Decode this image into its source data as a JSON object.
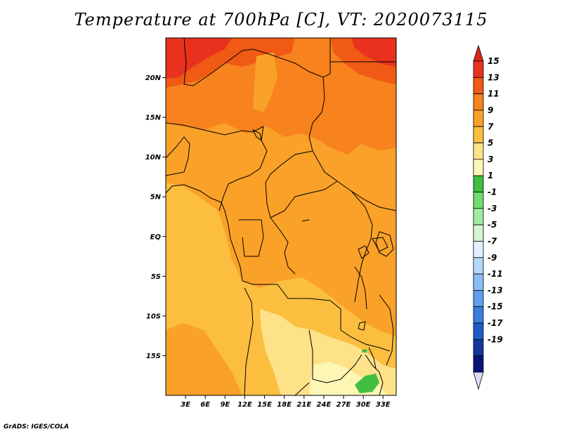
{
  "title": "Temperature at 700hPa [C], VT: 2020073115",
  "footer": "GrADS: IGES/COLA",
  "map": {
    "lon_range": [
      0,
      35
    ],
    "lat_range": [
      -20,
      25
    ],
    "lat_ticks": [
      {
        "value": 20,
        "label": "20N"
      },
      {
        "value": 15,
        "label": "15N"
      },
      {
        "value": 10,
        "label": "10N"
      },
      {
        "value": 5,
        "label": "5N"
      },
      {
        "value": 0,
        "label": "EQ"
      },
      {
        "value": -5,
        "label": "5S"
      },
      {
        "value": -10,
        "label": "10S"
      },
      {
        "value": -15,
        "label": "15S"
      }
    ],
    "lon_ticks": [
      {
        "value": 3,
        "label": "3E"
      },
      {
        "value": 6,
        "label": "6E"
      },
      {
        "value": 9,
        "label": "9E"
      },
      {
        "value": 12,
        "label": "12E"
      },
      {
        "value": 15,
        "label": "15E"
      },
      {
        "value": 18,
        "label": "18E"
      },
      {
        "value": 21,
        "label": "21E"
      },
      {
        "value": 24,
        "label": "24E"
      },
      {
        "value": 27,
        "label": "27E"
      },
      {
        "value": 30,
        "label": "30E"
      },
      {
        "value": 33,
        "label": "33E"
      }
    ]
  },
  "colorbar": {
    "levels": [
      "15",
      "13",
      "11",
      "9",
      "7",
      "5",
      "3",
      "1",
      "-1",
      "-3",
      "-5",
      "-7",
      "-9",
      "-11",
      "-13",
      "-15",
      "-17",
      "-19"
    ],
    "colors": [
      "#e8321e",
      "#f05a14",
      "#f7821e",
      "#f9a128",
      "#fbbe3f",
      "#fde28a",
      "#fdf6b4",
      "#3fbf3f",
      "#6fdc6f",
      "#a0eba0",
      "#d2f5d2",
      "#e1f0ff",
      "#b4d7fa",
      "#8cbdf5",
      "#5f9fec",
      "#3c7de0",
      "#1e5ac8",
      "#1436a0",
      "#0a1478"
    ],
    "top_arrow_color": "#d9281a",
    "bottom_arrow_color": "#dcdcf7"
  }
}
